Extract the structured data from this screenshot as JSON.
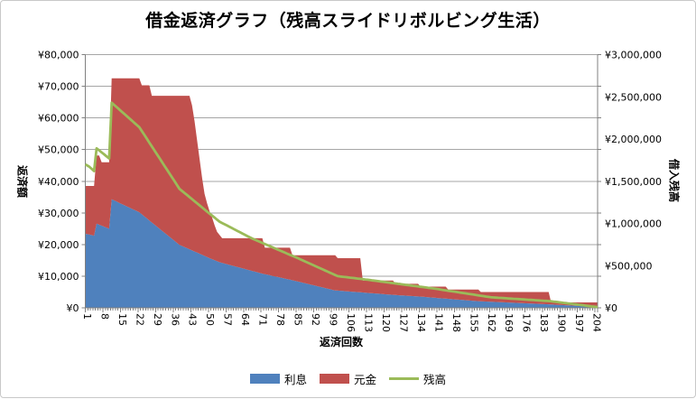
{
  "chart_data": {
    "type": "combo",
    "subtypes": [
      "stacked-area",
      "line"
    ],
    "title": "借金返済グラフ（残高スライドリボルビング生活）",
    "n_periods": 204,
    "x_axis": {
      "title": "返済回数",
      "tick_labels": [
        "1",
        "8",
        "15",
        "22",
        "29",
        "36",
        "43",
        "50",
        "57",
        "64",
        "71",
        "78",
        "85",
        "92",
        "99",
        "106",
        "113",
        "120",
        "127",
        "134",
        "141",
        "148",
        "155",
        "162",
        "169",
        "176",
        "183",
        "190",
        "197",
        "204"
      ]
    },
    "y_left": {
      "title": "返済額",
      "min": 0,
      "max": 80000,
      "step": 10000,
      "tick_values": [
        0,
        10000,
        20000,
        30000,
        40000,
        50000,
        60000,
        70000,
        80000
      ],
      "tick_labels": [
        "¥0",
        "¥10,000",
        "¥20,000",
        "¥30,000",
        "¥40,000",
        "¥50,000",
        "¥60,000",
        "¥70,000",
        "¥80,000"
      ]
    },
    "y_right": {
      "title": "借入残高",
      "min": 0,
      "max": 3000000,
      "step": 500000,
      "tick_values": [
        0,
        500000,
        1000000,
        1500000,
        2000000,
        2500000,
        3000000
      ],
      "tick_labels": [
        "¥0",
        "¥500,000",
        "¥1,000,000",
        "¥1,500,000",
        "¥2,000,000",
        "¥2,500,000",
        "¥3,000,000"
      ]
    },
    "series": {
      "interest": {
        "label": "利息",
        "color": "#4F81BD",
        "type": "area",
        "axis": "left",
        "stack_order": 1,
        "points": [
          [
            1,
            23400
          ],
          [
            4,
            22800
          ],
          [
            5,
            26600
          ],
          [
            10,
            25000
          ],
          [
            11,
            34300
          ],
          [
            22,
            30200
          ],
          [
            26,
            27600
          ],
          [
            38,
            19900
          ],
          [
            42,
            18500
          ],
          [
            50,
            15700
          ],
          [
            54,
            14400
          ],
          [
            71,
            10800
          ],
          [
            82,
            8900
          ],
          [
            100,
            5500
          ],
          [
            110,
            4900
          ],
          [
            123,
            4100
          ],
          [
            133,
            3600
          ],
          [
            144,
            2900
          ],
          [
            157,
            2100
          ],
          [
            185,
            1100
          ],
          [
            204,
            300
          ]
        ]
      },
      "principal": {
        "label": "元金",
        "color": "#C0504D",
        "type": "area",
        "axis": "left",
        "stack_order": 2,
        "payment_total_steps": [
          [
            1,
            4,
            38500
          ],
          [
            5,
            6,
            48100
          ],
          [
            7,
            10,
            46000
          ],
          [
            11,
            22,
            72500
          ],
          [
            23,
            26,
            70300
          ],
          [
            27,
            42,
            67000
          ],
          [
            43,
            43,
            64000
          ],
          [
            44,
            44,
            59000
          ],
          [
            45,
            45,
            53000
          ],
          [
            46,
            46,
            47000
          ],
          [
            47,
            47,
            41000
          ],
          [
            48,
            48,
            36000
          ],
          [
            49,
            49,
            33000
          ],
          [
            50,
            50,
            30500
          ],
          [
            51,
            51,
            28500
          ],
          [
            52,
            52,
            26000
          ],
          [
            53,
            53,
            24000
          ],
          [
            54,
            54,
            23000
          ],
          [
            55,
            71,
            22000
          ],
          [
            72,
            82,
            19000
          ],
          [
            83,
            100,
            16600
          ],
          [
            101,
            110,
            15700
          ],
          [
            111,
            123,
            8600
          ],
          [
            124,
            133,
            7600
          ],
          [
            134,
            144,
            6700
          ],
          [
            145,
            157,
            5800
          ],
          [
            158,
            185,
            5000
          ],
          [
            186,
            204,
            1700
          ]
        ]
      },
      "balance": {
        "label": "残高",
        "color": "#9BBB59",
        "type": "line",
        "axis": "right",
        "points": [
          [
            1,
            1700000
          ],
          [
            4,
            1620000
          ],
          [
            5,
            1890000
          ],
          [
            10,
            1770000
          ],
          [
            11,
            2430000
          ],
          [
            22,
            2140000
          ],
          [
            38,
            1410000
          ],
          [
            49,
            1140000
          ],
          [
            54,
            1020000
          ],
          [
            67,
            820000
          ],
          [
            85,
            590000
          ],
          [
            101,
            375000
          ],
          [
            111,
            340000
          ],
          [
            139,
            230000
          ],
          [
            162,
            125000
          ],
          [
            186,
            78000
          ],
          [
            204,
            10000
          ]
        ]
      }
    },
    "legend": {
      "position": "bottom",
      "items": [
        "利息",
        "元金",
        "残高"
      ]
    },
    "colors": {
      "grid": "#A6A6A6",
      "axis": "#808080",
      "text": "#000000",
      "background": "#FFFFFF",
      "frame_border": "#C8C8C8"
    }
  }
}
